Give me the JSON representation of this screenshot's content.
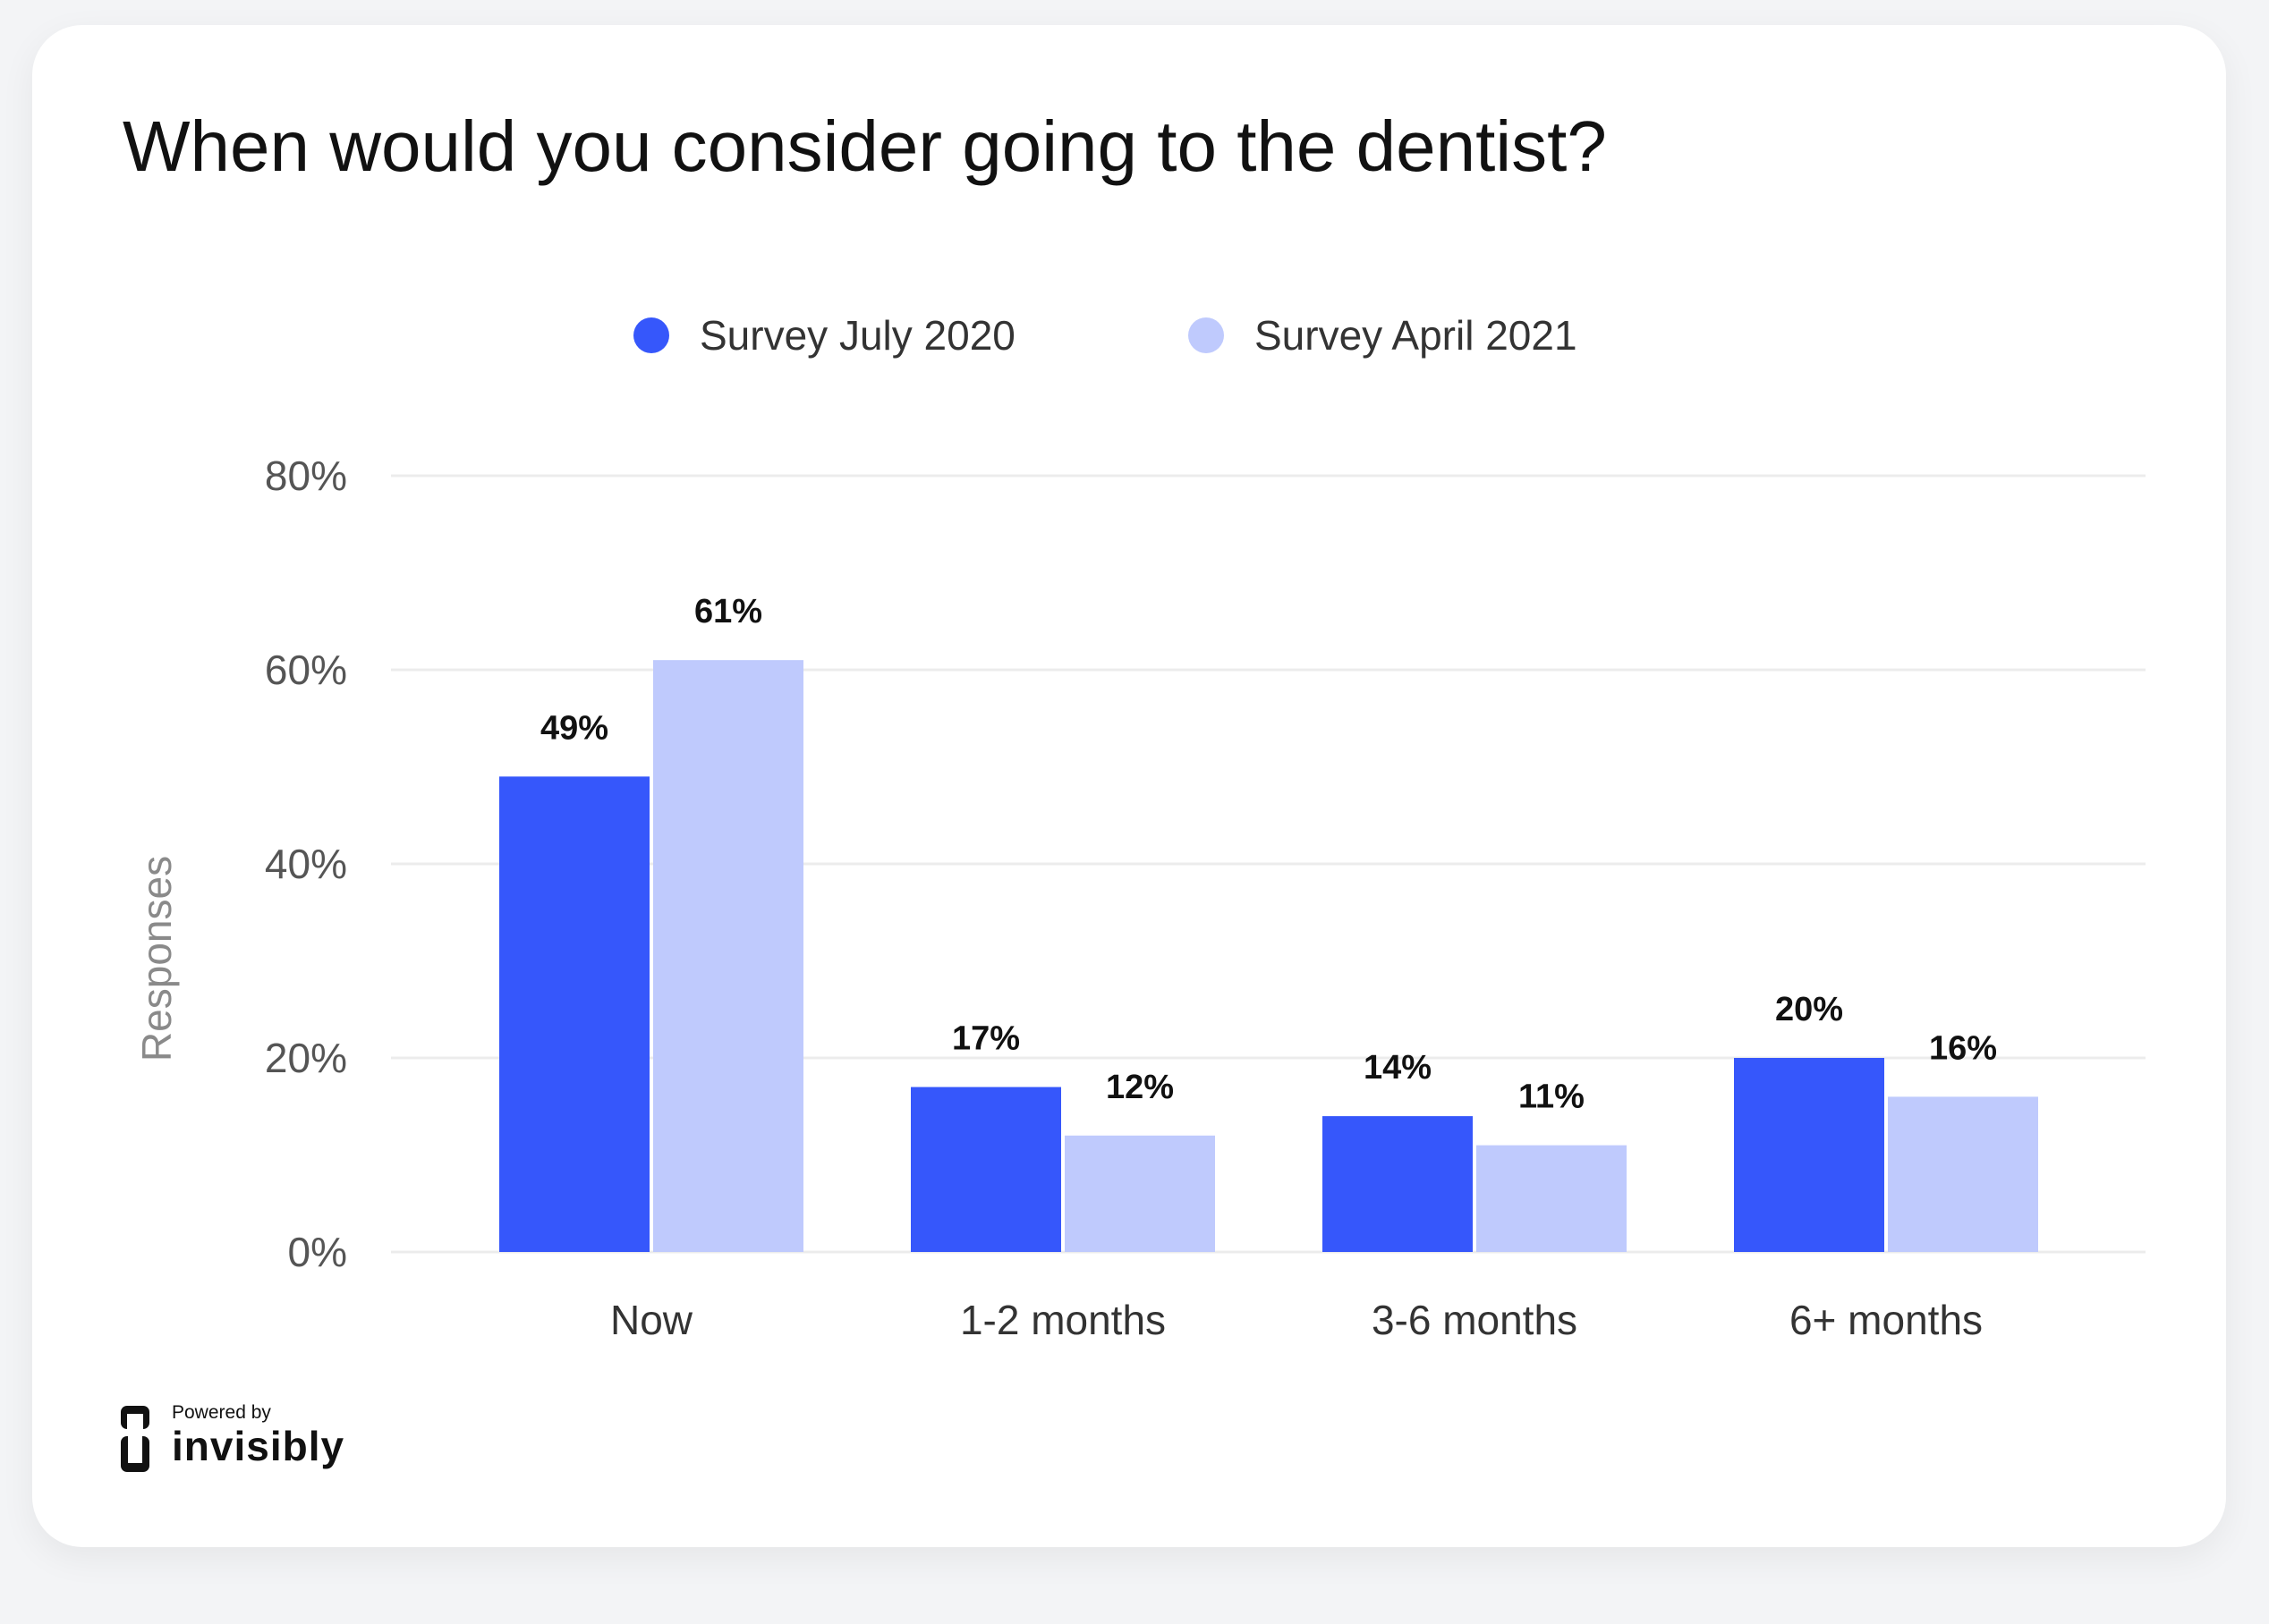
{
  "title": "When would you consider going to the dentist?",
  "footer": {
    "powered_by": "Powered by",
    "brand": "invisibly"
  },
  "colors": {
    "series1": "#3657fb",
    "series2": "#bfcafd",
    "grid": "#ececec",
    "tick": "#555555",
    "label": "#111111"
  },
  "chart_data": {
    "type": "bar",
    "title": "When would you consider going to the dentist?",
    "xlabel": "",
    "ylabel": "Responses",
    "ylim": [
      0,
      80
    ],
    "y_ticks": [
      "0%",
      "20%",
      "40%",
      "60%",
      "80%"
    ],
    "y_tick_values": [
      0,
      20,
      40,
      60,
      80
    ],
    "grid": true,
    "legend": "top-center",
    "categories": [
      "Now",
      "1-2 months",
      "3-6 months",
      "6+ months"
    ],
    "series": [
      {
        "name": "Survey July 2020",
        "values": [
          49,
          17,
          14,
          20
        ],
        "labels": [
          "49%",
          "17%",
          "14%",
          "20%"
        ],
        "color": "#3657fb"
      },
      {
        "name": "Survey April 2021",
        "values": [
          61,
          12,
          11,
          16
        ],
        "labels": [
          "61%",
          "12%",
          "11%",
          "16%"
        ],
        "color": "#bfcafd"
      }
    ]
  }
}
